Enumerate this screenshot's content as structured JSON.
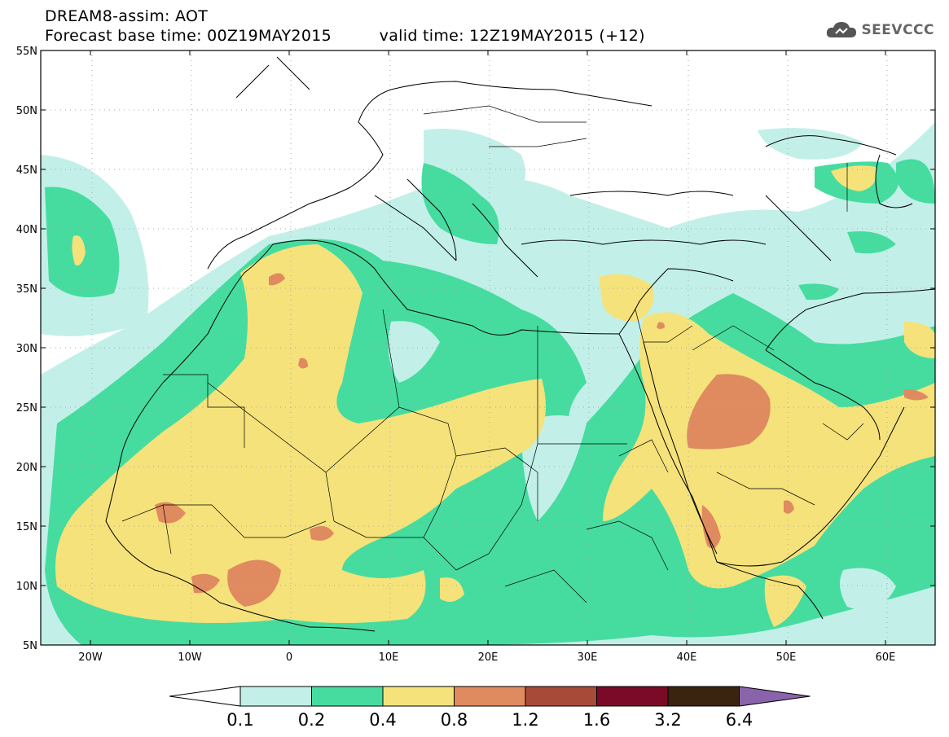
{
  "header": {
    "title": "DREAM8-assim: AOT",
    "base_time": "Forecast base time: 00Z19MAY2015",
    "valid_time": "valid time: 12Z19MAY2015 (+12)"
  },
  "logo": {
    "text": "SEEVCCC",
    "icon": "cloud-icon"
  },
  "map": {
    "lon_range": [
      -25,
      65
    ],
    "lat_range": [
      5,
      55
    ],
    "grid": true,
    "lon_ticks": [
      {
        "lon": -20,
        "label": "20W"
      },
      {
        "lon": -10,
        "label": "10W"
      },
      {
        "lon": 0,
        "label": "0"
      },
      {
        "lon": 10,
        "label": "10E"
      },
      {
        "lon": 20,
        "label": "20E"
      },
      {
        "lon": 30,
        "label": "30E"
      },
      {
        "lon": 40,
        "label": "40E"
      },
      {
        "lon": 50,
        "label": "50E"
      },
      {
        "lon": 60,
        "label": "60E"
      }
    ],
    "lat_ticks": [
      {
        "lat": 5,
        "label": "5N"
      },
      {
        "lat": 10,
        "label": "10N"
      },
      {
        "lat": 15,
        "label": "15N"
      },
      {
        "lat": 20,
        "label": "20N"
      },
      {
        "lat": 25,
        "label": "25N"
      },
      {
        "lat": 30,
        "label": "30N"
      },
      {
        "lat": 35,
        "label": "35N"
      },
      {
        "lat": 40,
        "label": "40N"
      },
      {
        "lat": 45,
        "label": "45N"
      },
      {
        "lat": 50,
        "label": "50N"
      },
      {
        "lat": 55,
        "label": "55N"
      }
    ]
  },
  "legend": {
    "labels": [
      "0.1",
      "0.2",
      "0.4",
      "0.8",
      "1.2",
      "1.6",
      "3.2",
      "6.4"
    ],
    "colors": [
      "#ffffff",
      "#c2f0e8",
      "#46dca0",
      "#f5e27a",
      "#e08a60",
      "#a84a38",
      "#7a0a28",
      "#3a2410",
      "#8a64aa"
    ]
  }
}
